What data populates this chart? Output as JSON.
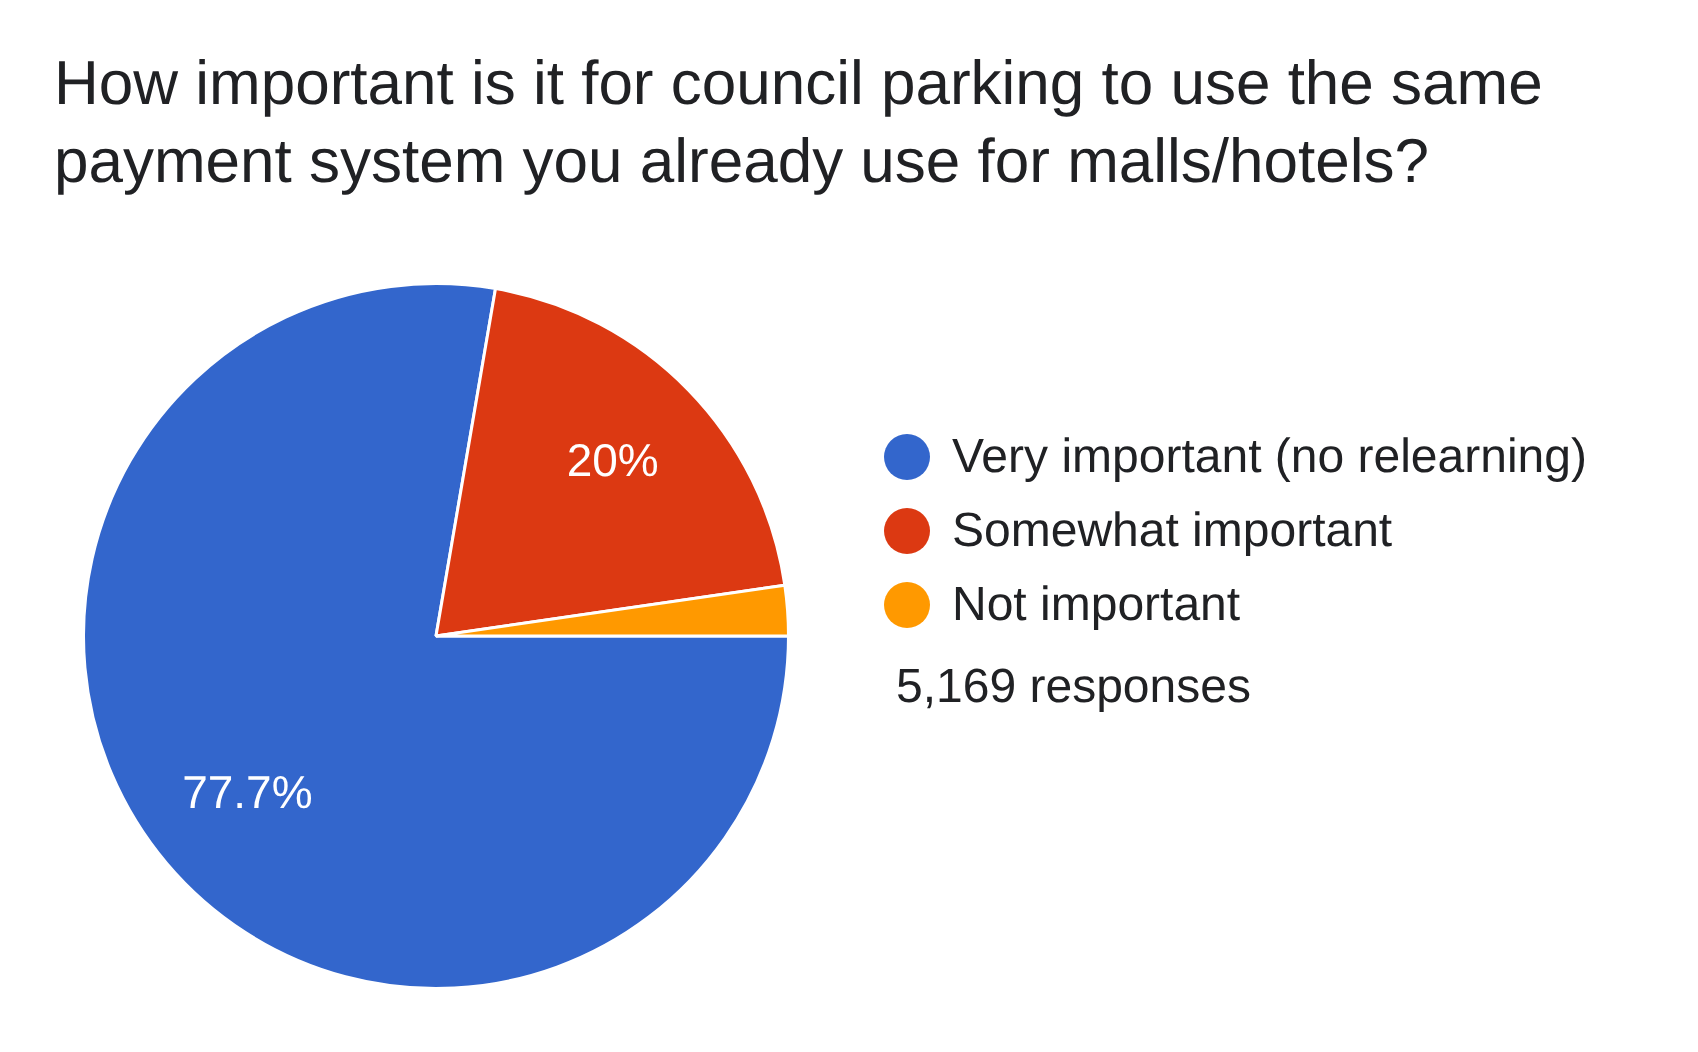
{
  "chart_data": {
    "type": "pie",
    "title": "How important is it for council parking to use the same payment system you already use for malls/hotels?",
    "categories": [
      "Very important (no relearning)",
      "Somewhat important",
      "Not important"
    ],
    "values": [
      77.7,
      20,
      2.3
    ],
    "colors": [
      "#3366cc",
      "#dc3912",
      "#ff9900"
    ],
    "value_labels": [
      "77.7%",
      "20%",
      null
    ],
    "legend": "right",
    "annotations": [
      "5,169 responses"
    ]
  }
}
